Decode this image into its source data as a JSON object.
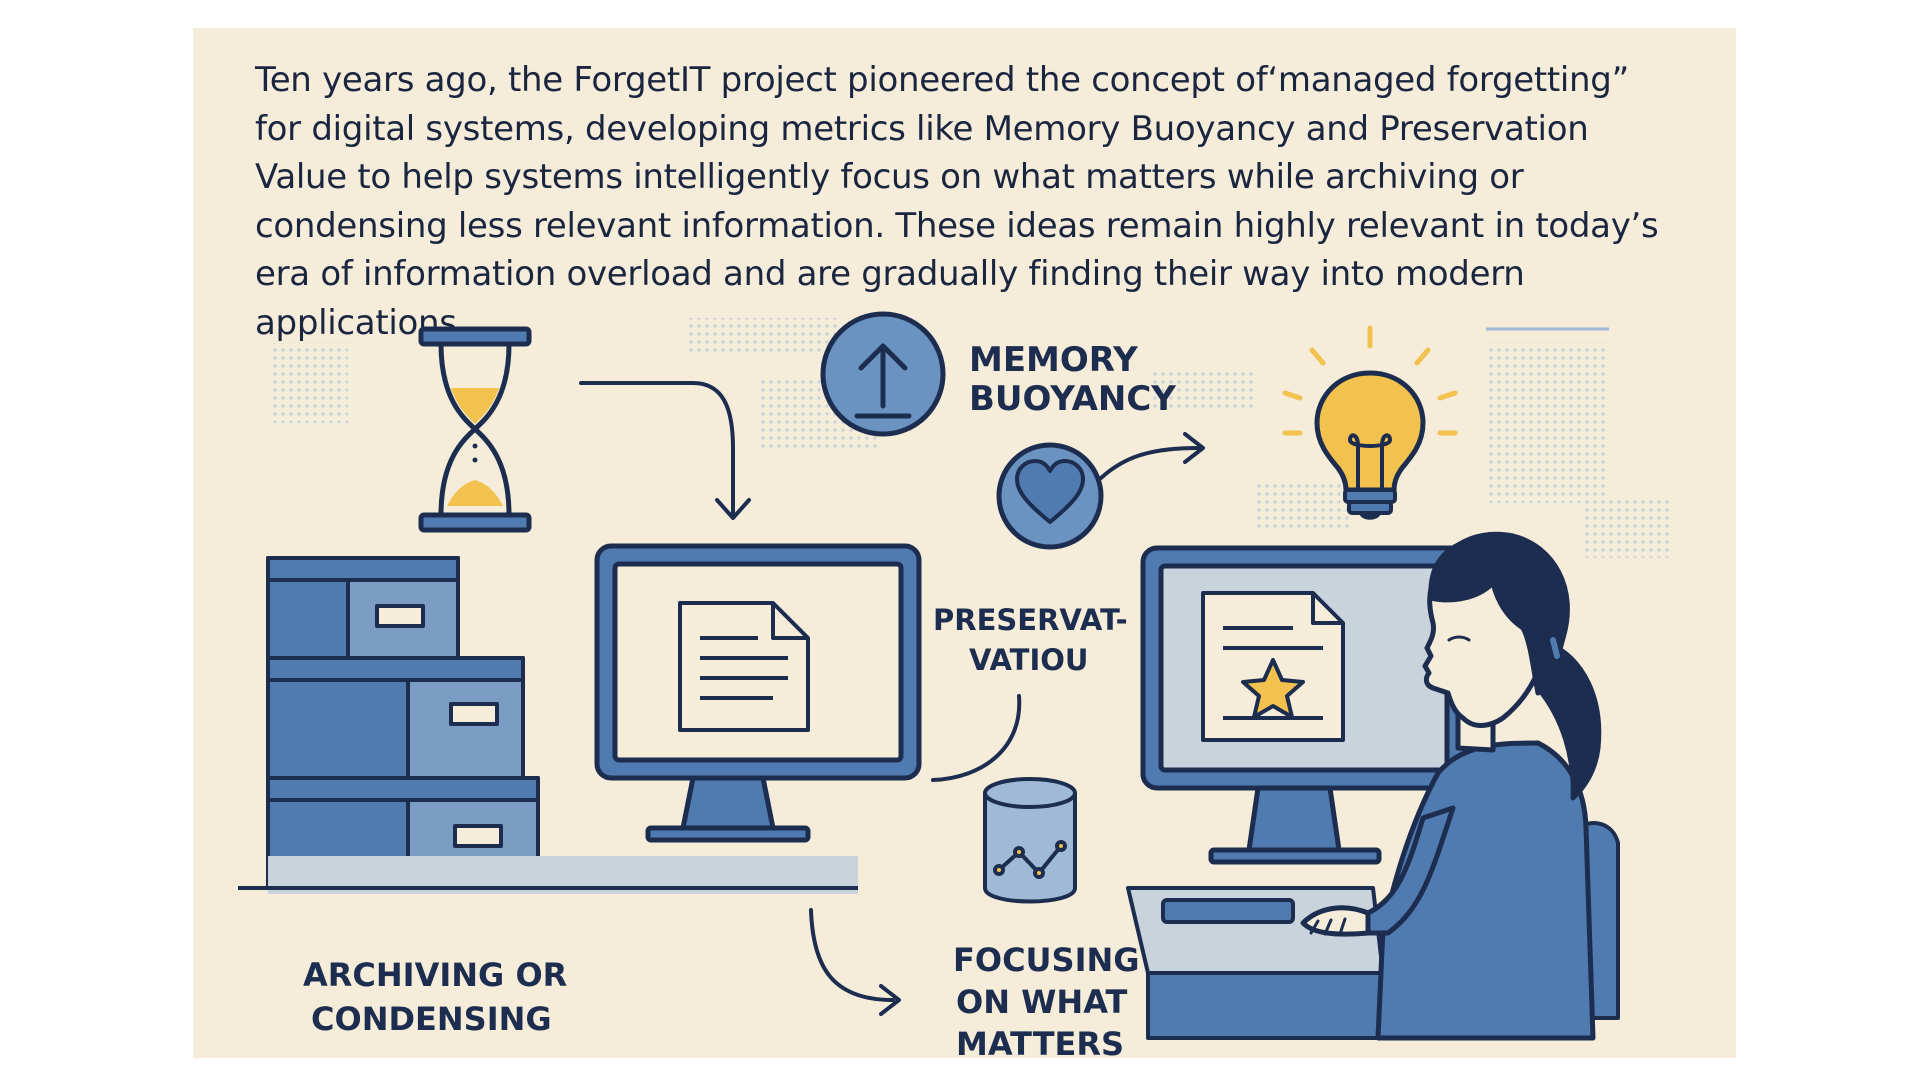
{
  "intro_text": "Ten years ago, the ForgetIT project pioneered the concept of‘managed forgetting” for digital systems, developing metrics like Memory Buoyancy and Preservation Value to help systems intelligently focus on what matters while archiving or condensing less relevant information. These ideas remain highly relevant in today’s era of information overload and are gradually finding their way into modern applications.",
  "labels": {
    "memory_line1": "MEMORY",
    "memory_line2": "BUOYANCY",
    "preserv_line1": "PRESERVAT-",
    "preserv_line2": "VATIOU",
    "archiving_line1": "ARCHIVING OR",
    "archiving_line2": "CONDENSING",
    "focusing_line1": "FOCUSING",
    "focusing_line2": "ON WHAT",
    "focusing_line3": "MATTERS"
  },
  "colors": {
    "background": "#f5ecd9",
    "navy": "#1c2d4f",
    "blue": "#4f7bb0",
    "light_blue": "#9fb9d6",
    "gray_blue": "#c9d3dc",
    "yellow": "#f2c14e"
  },
  "icons": [
    "hourglass-icon",
    "up-arrow-icon",
    "heart-icon",
    "lightbulb-icon",
    "document-icon",
    "star-document-icon",
    "database-icon"
  ]
}
